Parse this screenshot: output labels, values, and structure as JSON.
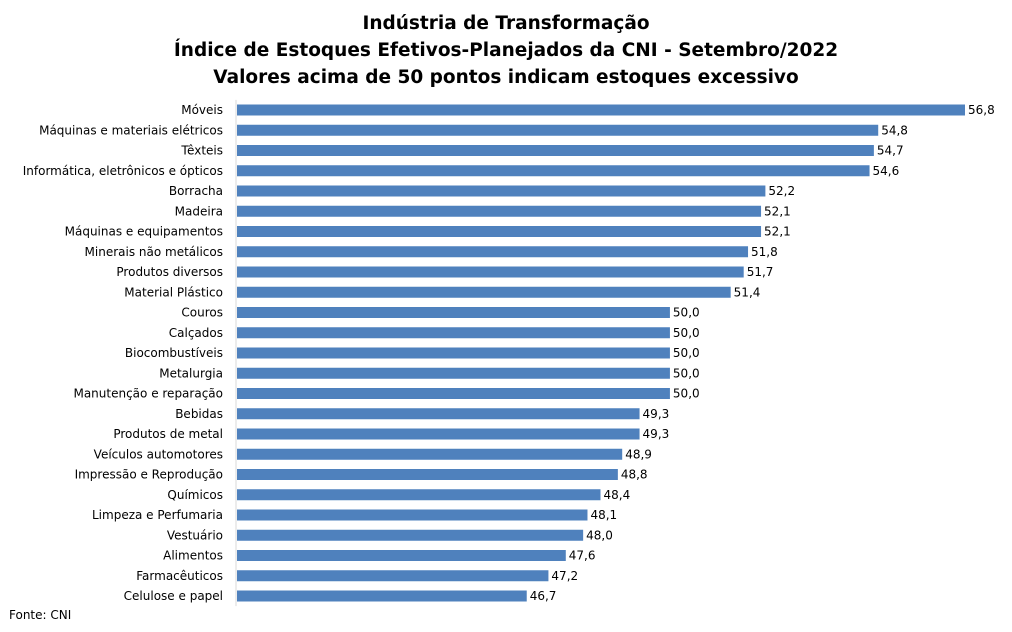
{
  "chart_data": {
    "type": "bar",
    "orientation": "horizontal",
    "title": [
      "Indústria de Transformação",
      "Índice de Estoques Efetivos-Planejados da CNI - Setembro/2022",
      "Valores acima de 50 pontos indicam estoques excessivo"
    ],
    "categories": [
      "Móveis",
      "Máquinas e materiais elétricos",
      "Têxteis",
      "Informática, eletrônicos e ópticos",
      "Borracha",
      "Madeira",
      "Máquinas e equipamentos",
      "Minerais não metálicos",
      "Produtos diversos",
      "Material Plástico",
      "Couros",
      "Calçados",
      "Biocombustíveis",
      "Metalurgia",
      "Manutenção e reparação",
      "Bebidas",
      "Produtos de metal",
      "Veículos automotores",
      "Impressão e Reprodução",
      "Químicos",
      "Limpeza e Perfumaria",
      "Vestuário",
      "Alimentos",
      "Farmacêuticos",
      "Celulose e papel"
    ],
    "values": [
      56.8,
      54.8,
      54.7,
      54.6,
      52.2,
      52.1,
      52.1,
      51.8,
      51.7,
      51.4,
      50.0,
      50.0,
      50.0,
      50.0,
      50.0,
      49.3,
      49.3,
      48.9,
      48.8,
      48.4,
      48.1,
      48.0,
      47.6,
      47.2,
      46.7
    ],
    "value_labels": [
      "56,8",
      "54,8",
      "54,7",
      "54,6",
      "52,2",
      "52,1",
      "52,1",
      "51,8",
      "51,7",
      "51,4",
      "50,0",
      "50,0",
      "50,0",
      "50,0",
      "50,0",
      "49,3",
      "49,3",
      "48,9",
      "48,8",
      "48,4",
      "48,1",
      "48,0",
      "47,6",
      "47,2",
      "46,7"
    ],
    "xlim": [
      40,
      58
    ],
    "bar_color": "#4f81bd",
    "grid": false,
    "legend": "none"
  },
  "source": "Fonte: CNI"
}
